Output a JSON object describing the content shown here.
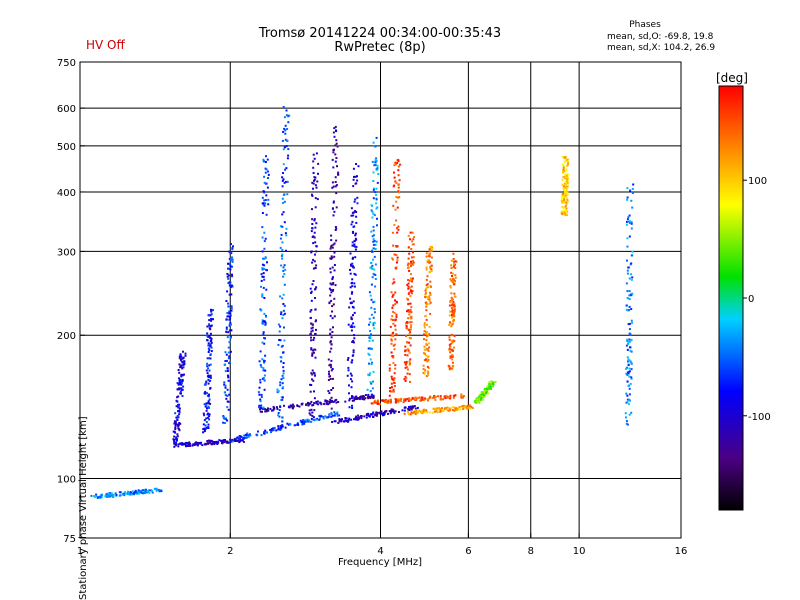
{
  "header": {
    "title_line1": "Tromsø 20141224 00:34:00-00:35:43",
    "title_line2": "RwPretec (8p)",
    "hv_status": "HV Off",
    "phase_title": "Phases",
    "phase_o": "mean, sd,O: -69.8, 19.8",
    "phase_x": "mean, sd,X: 104.2, 26.9"
  },
  "colors": {
    "hv_status": "#cc0000",
    "grid": "#000000"
  },
  "chart_data": {
    "type": "scatter",
    "xlabel": "Frequency [MHz]",
    "ylabel": "Stationary phase Virtual Height [km]",
    "x_scale": "log",
    "y_scale": "log",
    "xlim": [
      1,
      16
    ],
    "ylim": [
      75,
      750
    ],
    "x_ticks": [
      1,
      2,
      4,
      6,
      8,
      10,
      16
    ],
    "x_gridlines": [
      2,
      4,
      6,
      8,
      10
    ],
    "y_ticks": [
      75,
      100,
      200,
      300,
      400,
      500,
      600,
      750
    ],
    "y_gridlines": [
      100,
      200,
      300,
      400,
      500,
      600
    ],
    "grid": true,
    "colorbar": {
      "label": "[deg]",
      "range": [
        -180,
        180
      ],
      "ticks": [
        100,
        0,
        -100
      ],
      "placement": "right"
    },
    "traces": [
      {
        "x_start": 1.05,
        "x_end": 1.45,
        "y_start": 92,
        "y_end": 95,
        "phase": -40
      },
      {
        "x_start": 1.55,
        "x_end": 2.1,
        "y_start": 118,
        "y_end": 121,
        "phase": -105
      },
      {
        "x_start": 2.0,
        "x_end": 3.3,
        "y_start": 121,
        "y_end": 138,
        "phase": -60
      },
      {
        "x_start": 3.2,
        "x_end": 4.7,
        "y_start": 132,
        "y_end": 142,
        "phase": -105
      },
      {
        "x_start": 4.5,
        "x_end": 6.1,
        "y_start": 138,
        "y_end": 142,
        "phase": 115
      },
      {
        "x_start": 2.3,
        "x_end": 3.9,
        "y_start": 140,
        "y_end": 150,
        "phase": -120
      },
      {
        "x_start": 3.8,
        "x_end": 5.9,
        "y_start": 145,
        "y_end": 150,
        "phase": 150
      },
      {
        "x_start": 6.2,
        "x_end": 6.7,
        "y_start": 145,
        "y_end": 160,
        "phase": 40
      },
      {
        "x_start": 1.55,
        "x_end": 1.6,
        "y_start": 120,
        "y_end": 185,
        "phase": -90
      },
      {
        "x_start": 1.78,
        "x_end": 1.82,
        "y_start": 125,
        "y_end": 230,
        "phase": -80
      },
      {
        "x_start": 1.95,
        "x_end": 2.0,
        "y_start": 130,
        "y_end": 320,
        "phase": -70
      },
      {
        "x_start": 2.3,
        "x_end": 2.35,
        "y_start": 140,
        "y_end": 480,
        "phase": -60
      },
      {
        "x_start": 2.5,
        "x_end": 2.58,
        "y_start": 130,
        "y_end": 610,
        "phase": -55
      },
      {
        "x_start": 2.9,
        "x_end": 2.95,
        "y_start": 135,
        "y_end": 490,
        "phase": -110
      },
      {
        "x_start": 3.15,
        "x_end": 3.25,
        "y_start": 140,
        "y_end": 560,
        "phase": -120
      },
      {
        "x_start": 3.45,
        "x_end": 3.55,
        "y_start": 140,
        "y_end": 460,
        "phase": -95
      },
      {
        "x_start": 3.8,
        "x_end": 3.9,
        "y_start": 150,
        "y_end": 520,
        "phase": -40
      },
      {
        "x_start": 4.2,
        "x_end": 4.3,
        "y_start": 150,
        "y_end": 470,
        "phase": 160
      },
      {
        "x_start": 4.5,
        "x_end": 4.6,
        "y_start": 160,
        "y_end": 330,
        "phase": 150
      },
      {
        "x_start": 4.9,
        "x_end": 5.0,
        "y_start": 165,
        "y_end": 310,
        "phase": 130
      },
      {
        "x_start": 5.5,
        "x_end": 5.6,
        "y_start": 170,
        "y_end": 300,
        "phase": 140
      },
      {
        "x_start": 9.3,
        "x_end": 9.35,
        "y_start": 360,
        "y_end": 480,
        "phase": 100
      },
      {
        "x_start": 12.5,
        "x_end": 12.6,
        "y_start": 130,
        "y_end": 420,
        "phase": -45
      }
    ]
  }
}
